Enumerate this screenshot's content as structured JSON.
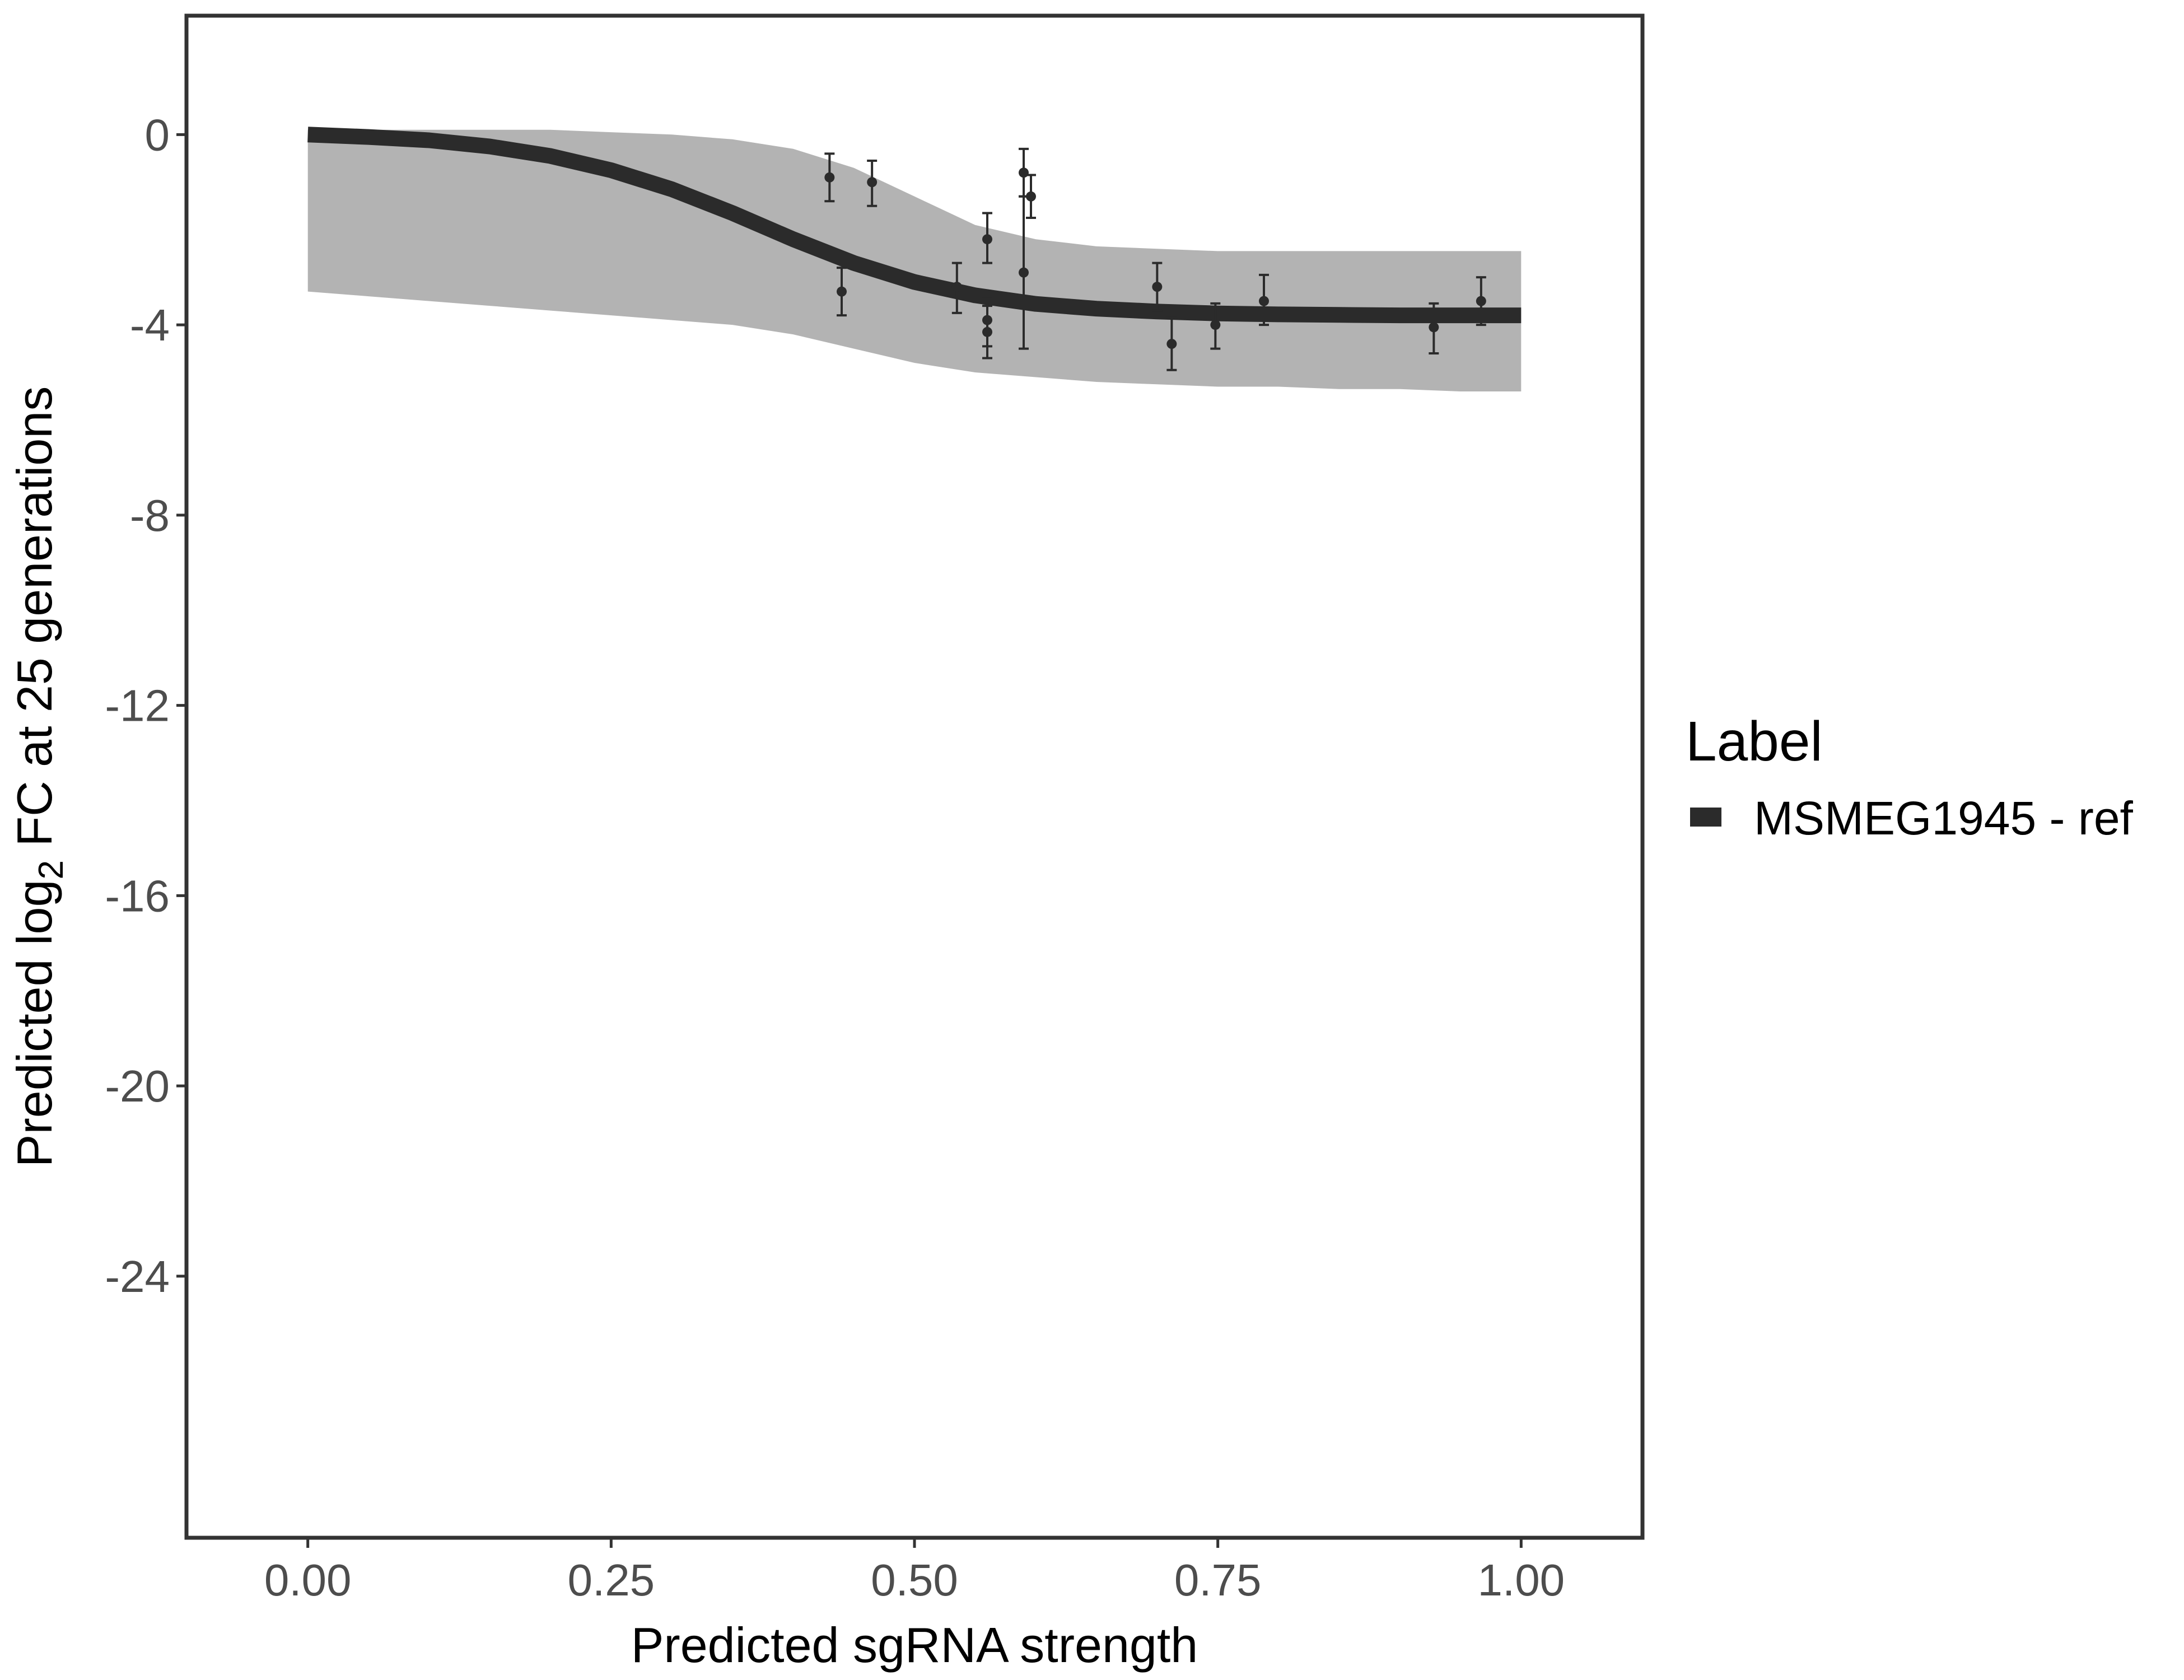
{
  "chart_data": {
    "type": "line",
    "xlabel": "Predicted sgRNA strength",
    "ylabel": {
      "prefix": "Predicted  log",
      "subscript": "2",
      "suffix": " FC at 25 generations"
    },
    "xlim": [
      -0.1,
      1.1
    ],
    "ylim": [
      -29.5,
      2.5
    ],
    "x_ticks": [
      0.0,
      0.25,
      0.5,
      0.75,
      1.0
    ],
    "x_tick_labels": [
      "0.00",
      "0.25",
      "0.50",
      "0.75",
      "1.00"
    ],
    "y_ticks": [
      0,
      -4,
      -8,
      -12,
      -16,
      -20,
      -24
    ],
    "y_tick_labels": [
      "0",
      "-4",
      "-8",
      "-12",
      "-16",
      "-20",
      "-24"
    ],
    "grid": false,
    "legend": {
      "title": "Label",
      "position": "right",
      "entries": [
        {
          "label": "MSMEG1945 - ref",
          "color": "#2b2b2b"
        }
      ]
    },
    "series": [
      {
        "name": "MSMEG1945 - ref",
        "kind": "fitted-curve",
        "color": "#2b2b2b",
        "x": [
          0.0,
          0.05,
          0.1,
          0.15,
          0.2,
          0.25,
          0.3,
          0.35,
          0.4,
          0.45,
          0.5,
          0.55,
          0.6,
          0.65,
          0.7,
          0.75,
          0.8,
          0.85,
          0.9,
          0.95,
          1.0
        ],
        "y": [
          0.0,
          -0.05,
          -0.12,
          -0.25,
          -0.45,
          -0.75,
          -1.15,
          -1.65,
          -2.2,
          -2.7,
          -3.1,
          -3.38,
          -3.56,
          -3.66,
          -3.72,
          -3.76,
          -3.78,
          -3.79,
          -3.8,
          -3.8,
          -3.8
        ]
      }
    ],
    "posterior_band": {
      "color": "#a6a6a6",
      "x": [
        0.0,
        0.05,
        0.1,
        0.15,
        0.2,
        0.25,
        0.3,
        0.35,
        0.4,
        0.45,
        0.5,
        0.55,
        0.6,
        0.65,
        0.7,
        0.75,
        0.8,
        0.85,
        0.9,
        0.95,
        1.0
      ],
      "upper": [
        0.1,
        0.1,
        0.1,
        0.1,
        0.1,
        0.05,
        0.0,
        -0.1,
        -0.3,
        -0.7,
        -1.3,
        -1.9,
        -2.2,
        -2.35,
        -2.4,
        -2.45,
        -2.45,
        -2.45,
        -2.45,
        -2.45,
        -2.45
      ],
      "lower": [
        -3.3,
        -3.4,
        -3.5,
        -3.6,
        -3.7,
        -3.8,
        -3.9,
        -4.0,
        -4.2,
        -4.5,
        -4.8,
        -5.0,
        -5.1,
        -5.2,
        -5.25,
        -5.3,
        -5.3,
        -5.35,
        -5.35,
        -5.4,
        -5.4
      ]
    },
    "points": {
      "color": "#2b2b2b",
      "data": [
        {
          "x": 0.43,
          "y": -0.9,
          "ymin": -1.4,
          "ymax": -0.4
        },
        {
          "x": 0.44,
          "y": -3.3,
          "ymin": -3.8,
          "ymax": -2.8
        },
        {
          "x": 0.465,
          "y": -1.0,
          "ymin": -1.5,
          "ymax": -0.55
        },
        {
          "x": 0.535,
          "y": -3.2,
          "ymin": -3.75,
          "ymax": -2.7
        },
        {
          "x": 0.56,
          "y": -2.2,
          "ymin": -2.7,
          "ymax": -1.65
        },
        {
          "x": 0.56,
          "y": -3.9,
          "ymin": -4.45,
          "ymax": -3.45
        },
        {
          "x": 0.56,
          "y": -4.15,
          "ymin": -4.7,
          "ymax": -3.6
        },
        {
          "x": 0.59,
          "y": -0.8,
          "ymin": -1.3,
          "ymax": -0.3
        },
        {
          "x": 0.59,
          "y": -2.9,
          "ymin": -4.5,
          "ymax": -1.3
        },
        {
          "x": 0.596,
          "y": -1.3,
          "ymin": -1.75,
          "ymax": -0.85
        },
        {
          "x": 0.7,
          "y": -3.2,
          "ymin": -3.7,
          "ymax": -2.7
        },
        {
          "x": 0.712,
          "y": -4.4,
          "ymin": -4.95,
          "ymax": -3.85
        },
        {
          "x": 0.748,
          "y": -4.0,
          "ymin": -4.5,
          "ymax": -3.55
        },
        {
          "x": 0.788,
          "y": -3.5,
          "ymin": -4.0,
          "ymax": -2.95
        },
        {
          "x": 0.928,
          "y": -4.05,
          "ymin": -4.6,
          "ymax": -3.55
        },
        {
          "x": 0.967,
          "y": -3.5,
          "ymin": -4.0,
          "ymax": -3.0
        }
      ]
    }
  }
}
